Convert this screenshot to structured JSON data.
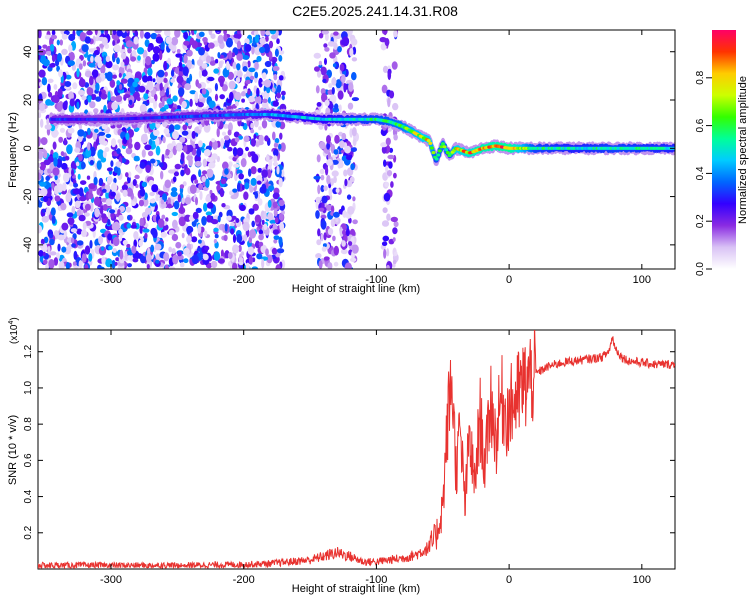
{
  "title": "C2E5.2025.241.14.31.R08",
  "chart_data": [
    {
      "type": "heatmap",
      "xlabel": "Height of straight line (km)",
      "ylabel": "Frequency (Hz)",
      "xlim": [
        -355,
        125
      ],
      "ylim": [
        -50,
        49
      ],
      "xticks": [
        -300,
        -200,
        -100,
        0,
        100
      ],
      "yticks": [
        -40,
        -20,
        0,
        20,
        40
      ],
      "colorbar": {
        "label": "Normalized spectral amplitude",
        "range": [
          0,
          1
        ],
        "ticks": [
          0.0,
          0.2,
          0.4,
          0.6,
          0.8
        ],
        "colors": [
          "#ffffff",
          "#d9c2f5",
          "#8a2be2",
          "#3300ff",
          "#0066ff",
          "#00ccff",
          "#00ff99",
          "#33ff00",
          "#ccff00",
          "#ffcc00",
          "#ff3300",
          "#ff0066"
        ]
      },
      "ridge": {
        "x": [
          -345,
          -300,
          -250,
          -200,
          -180,
          -160,
          -140,
          -120,
          -100,
          -90,
          -80,
          -70,
          -60,
          -55,
          -50,
          -45,
          -40,
          -30,
          -20,
          -10,
          0,
          20,
          50,
          80,
          125
        ],
        "y": [
          12,
          12,
          13,
          14,
          14,
          13,
          12,
          12,
          12,
          11,
          9,
          6,
          3,
          -5,
          2,
          -3,
          0,
          -2,
          0,
          1,
          0,
          0,
          0,
          0,
          0
        ],
        "peak_amplitude": [
          0.35,
          0.3,
          0.35,
          0.4,
          0.45,
          0.5,
          0.5,
          0.55,
          0.6,
          0.65,
          0.7,
          0.8,
          0.85,
          0.6,
          0.7,
          0.6,
          0.85,
          0.9,
          0.95,
          0.95,
          1.0,
          0.6,
          0.55,
          0.6,
          0.55
        ]
      },
      "noise_regions": [
        {
          "x": [
            -355,
            -170
          ],
          "amplitude": 0.3
        },
        {
          "x": [
            -145,
            -115
          ],
          "amplitude": 0.25
        },
        {
          "x": [
            -95,
            -85
          ],
          "amplitude": 0.2
        }
      ]
    },
    {
      "type": "line",
      "xlabel": "Height of straight line (km)",
      "ylabel": "SNR (10 * v/v)",
      "y_multiplier_label": "(x10",
      "y_multiplier_exp": "4",
      "xlim": [
        -355,
        125
      ],
      "ylim": [
        0,
        1.32
      ],
      "xticks": [
        -300,
        -200,
        -100,
        0,
        100
      ],
      "yticks": [
        0.2,
        0.4,
        0.6,
        0.8,
        1.0,
        1.2
      ],
      "series": [
        {
          "color": "#e8322f",
          "x": [
            -355,
            -300,
            -250,
            -200,
            -180,
            -165,
            -150,
            -140,
            -130,
            -120,
            -110,
            -100,
            -90,
            -80,
            -70,
            -60,
            -55,
            -50,
            -46,
            -43,
            -40,
            -37,
            -33,
            -30,
            -26,
            -22,
            -18,
            -14,
            -10,
            -6,
            -2,
            2,
            6,
            10,
            15,
            20,
            25,
            30,
            40,
            50,
            60,
            70,
            75,
            78,
            80,
            85,
            90,
            100,
            110,
            125
          ],
          "y": [
            0.02,
            0.02,
            0.02,
            0.025,
            0.03,
            0.04,
            0.05,
            0.07,
            0.09,
            0.07,
            0.04,
            0.04,
            0.05,
            0.06,
            0.08,
            0.12,
            0.18,
            0.35,
            0.85,
            1.05,
            0.55,
            0.75,
            0.35,
            0.75,
            0.45,
            0.85,
            0.55,
            0.95,
            0.7,
            0.95,
            0.85,
            0.9,
            0.95,
            1.0,
            1.05,
            1.08,
            1.1,
            1.12,
            1.14,
            1.15,
            1.16,
            1.17,
            1.2,
            1.28,
            1.22,
            1.17,
            1.15,
            1.14,
            1.13,
            1.13
          ]
        }
      ]
    }
  ]
}
